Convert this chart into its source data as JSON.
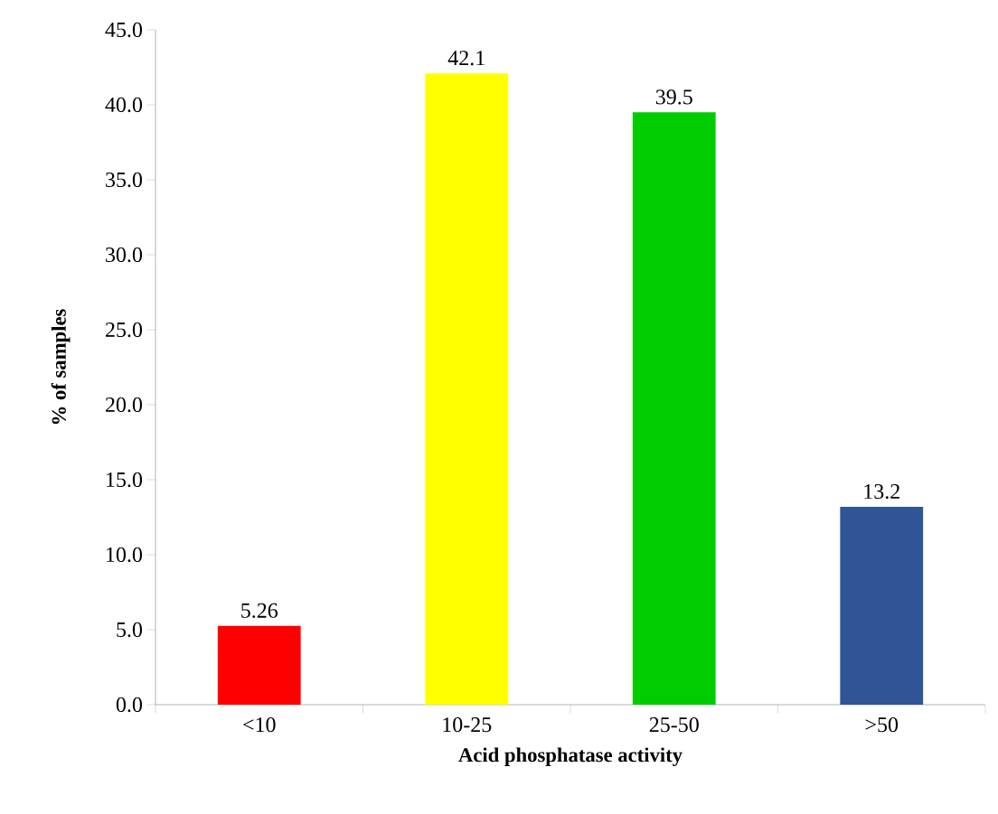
{
  "chart_data": {
    "type": "bar",
    "xlabel": "Acid phosphatase activity",
    "ylabel": "% of samples",
    "categories": [
      "<10",
      "10-25",
      "25-50",
      ">50"
    ],
    "values": [
      5.26,
      42.1,
      39.5,
      13.2
    ],
    "colors": [
      "#ff0000",
      "#ffff00",
      "#00cc00",
      "#2f5597"
    ],
    "data_labels": true,
    "ylim": [
      0,
      45
    ],
    "yticks": [
      {
        "value": 0,
        "label": "0.0"
      },
      {
        "value": 5,
        "label": "5.0"
      },
      {
        "value": 10,
        "label": "10.0"
      },
      {
        "value": 15,
        "label": "15.0"
      },
      {
        "value": 20,
        "label": "20.0"
      },
      {
        "value": 25,
        "label": "25.0"
      },
      {
        "value": 30,
        "label": "30.0"
      },
      {
        "value": 35,
        "label": "35.0"
      },
      {
        "value": 40,
        "label": "40.0"
      },
      {
        "value": 45,
        "label": "45.0"
      }
    ],
    "grid": false
  }
}
